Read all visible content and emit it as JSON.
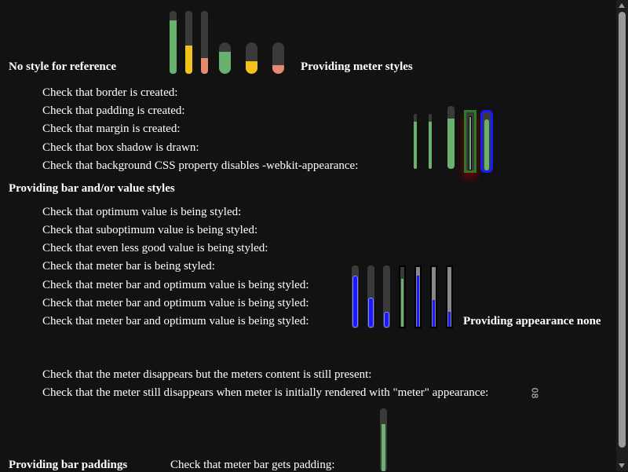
{
  "headings": {
    "no_style": "No style for reference",
    "meter_styles": "Providing meter styles",
    "bar_value_styles": "Providing bar and/or value styles",
    "appearance_none": "Providing appearance none",
    "bar_paddings": "Providing bar paddings"
  },
  "checks_meter_styles": [
    "Check that border is created:",
    "Check that padding is created:",
    "Check that margin is created:",
    "Check that box shadow is drawn:",
    "Check that background CSS property disables -webkit-appearance:"
  ],
  "checks_bar_value": [
    "Check that optimum value is being styled:",
    "Check that suboptimum value is being styled:",
    "Check that even less good value is being styled:",
    "Check that meter bar is being styled:",
    "Check that meter bar and optimum value is being styled:",
    "Check that meter bar and optimum value is being styled:",
    "Check that meter bar and optimum value is being styled:"
  ],
  "checks_appearance_none": [
    "Check that the meter disappears but the meters content is still present:",
    "Check that the meter still disappears when meter is initially rendered with \"meter\" appearance:"
  ],
  "meter_content_glyph": "08",
  "check_bar_padding": "Check that meter bar gets padding:",
  "reference_meters": [
    {
      "value": 0.85,
      "color": "#6ab06f"
    },
    {
      "value": 0.45,
      "color": "#f2c21a"
    },
    {
      "value": 0.25,
      "color": "#e48a6f"
    }
  ],
  "styled_meters": [
    {
      "value": 0.7,
      "color": "#6ab06f"
    },
    {
      "value": 0.4,
      "color": "#f2c21a"
    },
    {
      "value": 0.3,
      "color": "#e48a6f"
    }
  ],
  "colors": {
    "background": "#121212",
    "track": "#3a3a3a",
    "green": "#6ab06f",
    "yellow": "#f2c21a",
    "orange": "#e48a6f",
    "blue": "#1a1aff"
  }
}
